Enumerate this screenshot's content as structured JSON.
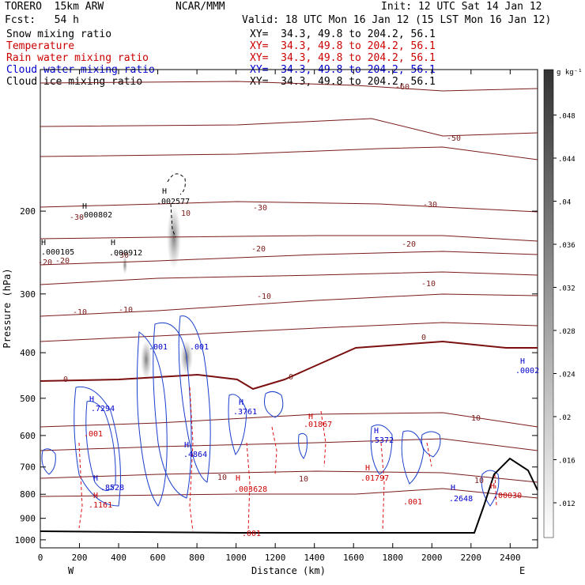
{
  "header": {
    "model_line": "TORERO  15km ARW",
    "source": "NCAR/MMM",
    "init": "Init: 12 UTC Sat 14 Jan 12",
    "forecast": "Fcst:   54 h",
    "valid": "Valid: 18 UTC Mon 16 Jan 12 (15 LST Mon 16 Jan 12)"
  },
  "fields": [
    {
      "label": "Snow mixing ratio",
      "xy": "XY=  34.3, 49.8 to 204.2, 56.1",
      "color": "#000000"
    },
    {
      "label": "Temperature",
      "xy": "XY=  34.3, 49.8 to 204.2, 56.1",
      "color": "#cc0000"
    },
    {
      "label": "Rain water mixing ratio",
      "xy": "XY=  34.3, 49.8 to 204.2, 56.1",
      "color": "#cc0000"
    },
    {
      "label": "Cloud water mixing ratio",
      "xy": "XY=  34.3, 49.8 to 204.2, 56.1",
      "color": "#0000cc"
    },
    {
      "label": "Cloud ice mixing ratio",
      "xy": "XY=  34.3, 49.8 to 204.2, 56.1",
      "color": "#000000"
    }
  ],
  "chart_data": {
    "type": "contour cross-section",
    "xlabel": "Distance (km)",
    "ylabel": "Pressure (hPa)",
    "x_ticks": [
      0,
      200,
      400,
      600,
      800,
      1000,
      1200,
      1400,
      1600,
      1800,
      2000,
      2200,
      2400
    ],
    "y_ticks": [
      200,
      300,
      400,
      500,
      600,
      700,
      800,
      900,
      1000
    ],
    "xlim": [
      0,
      2540
    ],
    "ylim": [
      1040,
      100
    ],
    "y_scale": "log",
    "left_end_label": "W",
    "right_end_label": "E",
    "colorbar": {
      "unit": "g kg⁻¹",
      "ticks": [
        ".012",
        ".016",
        ".02",
        ".024",
        ".028",
        ".032",
        ".036",
        ".04",
        ".044",
        ".048"
      ]
    },
    "temperature_isotherm_labels": [
      "-60",
      "-50",
      "-30",
      "-30",
      "-30",
      "-20",
      "-20",
      "-20",
      "-10",
      "-10",
      "-10",
      "-10",
      "0",
      "0",
      "0",
      "10",
      "10",
      "10",
      "10",
      "10",
      "-30",
      "-20"
    ],
    "maxima_labels": [
      {
        "text": ".000802",
        "color": "#000000"
      },
      {
        "text": ".002577",
        "color": "#000000"
      },
      {
        "text": ".000105",
        "color": "#000000"
      },
      {
        "text": ".000912",
        "color": "#000000"
      },
      {
        "text": ".7294",
        "color": "#0000cc"
      },
      {
        "text": ".3761",
        "color": "#0000cc"
      },
      {
        "text": ".4864",
        "color": "#0000cc"
      },
      {
        "text": ".5372",
        "color": "#0000cc"
      },
      {
        "text": ".8528",
        "color": "#0000cc"
      },
      {
        "text": ".2648",
        "color": "#0000cc"
      },
      {
        "text": ".0002",
        "color": "#0000cc"
      },
      {
        "text": ".001",
        "color": "#0000cc"
      },
      {
        "text": ".001",
        "color": "#0000cc"
      },
      {
        "text": ".01867",
        "color": "#cc0000"
      },
      {
        "text": ".01797",
        "color": "#cc0000"
      },
      {
        "text": ".003628",
        "color": "#cc0000"
      },
      {
        "text": ".1161",
        "color": "#cc0000"
      },
      {
        "text": ".00030",
        "color": "#cc0000"
      },
      {
        "text": ".001",
        "color": "#cc0000"
      },
      {
        "text": ".001",
        "color": "#cc0000"
      },
      {
        "text": ".001",
        "color": "#cc0000"
      }
    ]
  }
}
